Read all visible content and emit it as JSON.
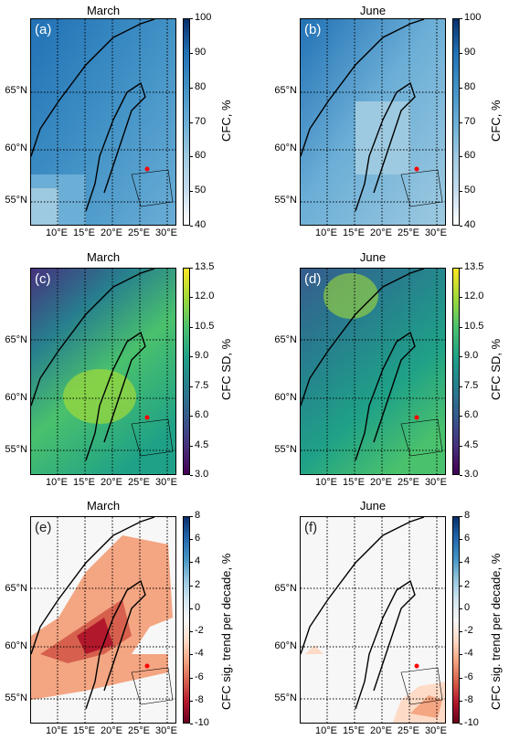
{
  "panels": [
    {
      "id": "a",
      "tag": "(a)",
      "title": "March"
    },
    {
      "id": "b",
      "tag": "(b)",
      "title": "June"
    },
    {
      "id": "c",
      "tag": "(c)",
      "title": "March"
    },
    {
      "id": "d",
      "tag": "(d)",
      "title": "June"
    },
    {
      "id": "e",
      "tag": "(e)",
      "title": "March"
    },
    {
      "id": "f",
      "tag": "(f)",
      "title": "June"
    }
  ],
  "lat_labels": [
    "65°N",
    "60°N",
    "55°N"
  ],
  "lon_labels": [
    "10°E",
    "15°E",
    "20°E",
    "25°E",
    "30°E"
  ],
  "colorbars": {
    "cfc": {
      "label": "CFC, %",
      "ticks": [
        "100",
        "90",
        "80",
        "70",
        "60",
        "50",
        "40"
      ],
      "colors": [
        "#08306b",
        "#2171b5",
        "#4292c6",
        "#6baed6",
        "#9ecae1",
        "#c6dbef",
        "#ffffff"
      ]
    },
    "sd": {
      "label": "CFC SD, %",
      "ticks": [
        "13.5",
        "12.0",
        "10.5",
        "9.0",
        "7.5",
        "6.0",
        "4.5",
        "3.0"
      ],
      "colors": [
        "#fde725",
        "#a0da39",
        "#4ac16d",
        "#1fa187",
        "#277f8e",
        "#365c8d",
        "#46327e",
        "#440154"
      ]
    },
    "trend": {
      "label": "CFC sig. trend per decade, %",
      "ticks": [
        "8",
        "6",
        "4",
        "2",
        "0",
        "-2",
        "-4",
        "-6",
        "-8",
        "-10"
      ],
      "colors": [
        "#08306b",
        "#2166ac",
        "#4393c3",
        "#92c5de",
        "#d1e5f0",
        "#f7f7f7",
        "#fddbc7",
        "#f4a582",
        "#d6604d",
        "#b2182b",
        "#67001f"
      ]
    }
  },
  "marker_color": "#ff0000"
}
